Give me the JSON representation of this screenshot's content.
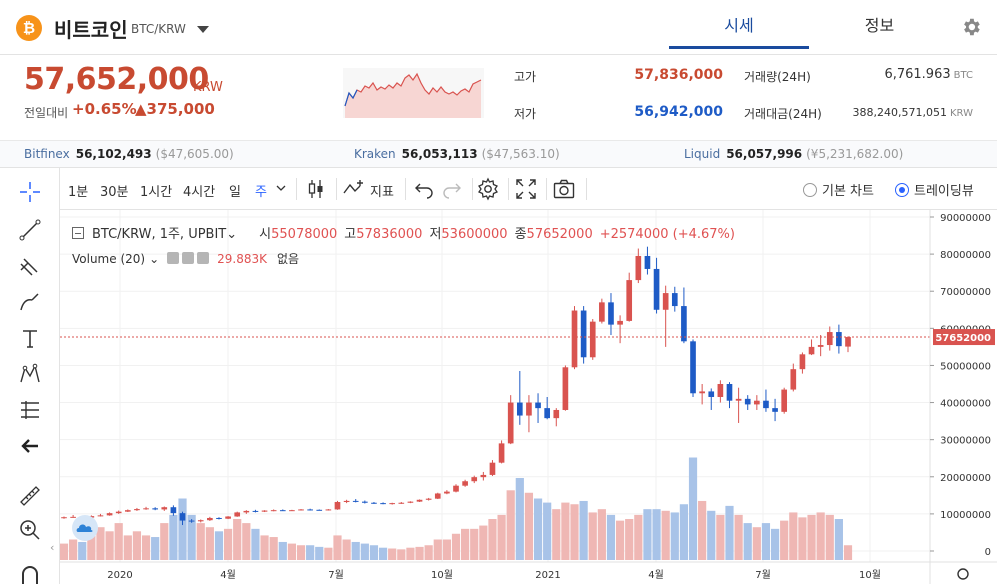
{
  "header": {
    "coin_symbol": "₿",
    "coin_name": "비트코인",
    "pair": "BTC/KRW",
    "tabs": [
      {
        "label": "시세",
        "active": true
      },
      {
        "label": "정보",
        "active": false
      }
    ]
  },
  "price": {
    "current": "57,652,000",
    "unit": "KRW",
    "change_label": "전일대비",
    "change_pct": "+0.65%",
    "change_amt": "▲375,000",
    "high_label": "고가",
    "high": "57,836,000",
    "low_label": "저가",
    "low": "56,942,000",
    "volume_label": "거래량(24H)",
    "volume": "6,761.963",
    "volume_unit": "BTC",
    "value_label": "거래대금(24H)",
    "value": "388,240,571,051",
    "value_unit": "KRW"
  },
  "exchanges": [
    {
      "name": "Bitfinex",
      "price": "56,102,493",
      "sub": "($47,605.00)"
    },
    {
      "name": "Kraken",
      "price": "56,053,113",
      "sub": "($47,563.10)"
    },
    {
      "name": "Liquid",
      "price": "56,057,996",
      "sub": "(¥5,231,682.00)"
    }
  ],
  "toolbar": {
    "intervals": [
      "1분",
      "30분",
      "1시간",
      "4시간",
      "일",
      "주"
    ],
    "active_interval": "주",
    "indicators_label": "지표",
    "radio_basic": "기본 차트",
    "radio_tv": "트레이딩뷰"
  },
  "legend": {
    "symbol": "BTC/KRW, 1주, UPBIT",
    "open_label": "시",
    "open": "55078000",
    "high_label": "고",
    "high": "57836000",
    "low_label": "저",
    "low": "53600000",
    "close_label": "종",
    "close": "57652000",
    "change": "+2574000 (+4.67%)",
    "volume_label": "Volume (20)",
    "volume_value": "29.883K",
    "volume_ma": "없음"
  },
  "colors": {
    "up": "#d9534f",
    "down": "#1e5bc6",
    "vol_up": "#efb7b4",
    "vol_down": "#a8c3e8",
    "accent": "#1a4b9e"
  },
  "chart_data": {
    "type": "candlestick",
    "ylim": [
      0,
      90000000
    ],
    "y_ticks": [
      "90000000",
      "80000000",
      "70000000",
      "60000000",
      "50000000",
      "40000000",
      "30000000",
      "20000000",
      "10000000",
      "0"
    ],
    "x_labels": [
      "2020",
      "4월",
      "7월",
      "10월",
      "2021",
      "4월",
      "7월",
      "10월"
    ],
    "last_price_label": "57652000",
    "candles": [
      [
        9000000,
        9300000,
        8700000,
        9100000,
        0.2
      ],
      [
        9100000,
        9700000,
        9000000,
        9200000,
        0.25
      ],
      [
        9200000,
        9400000,
        8900000,
        9000000,
        0.22
      ],
      [
        9000000,
        9600000,
        8800000,
        9400000,
        0.3
      ],
      [
        9400000,
        10000000,
        9300000,
        9600000,
        0.4
      ],
      [
        9600000,
        10400000,
        9500000,
        10200000,
        0.35
      ],
      [
        10200000,
        10900000,
        10000000,
        10600000,
        0.45
      ],
      [
        10600000,
        11200000,
        10500000,
        11000000,
        0.3
      ],
      [
        11000000,
        11600000,
        10800000,
        11300000,
        0.35
      ],
      [
        11300000,
        11900000,
        11100000,
        11500000,
        0.3
      ],
      [
        11500000,
        11800000,
        11000000,
        11200000,
        0.28
      ],
      [
        11200000,
        12000000,
        10800000,
        11800000,
        0.45
      ],
      [
        11800000,
        12300000,
        9500000,
        10200000,
        0.55
      ],
      [
        10200000,
        10600000,
        7000000,
        8200000,
        0.75
      ],
      [
        8200000,
        8600000,
        7600000,
        8000000,
        0.55
      ],
      [
        8000000,
        8500000,
        7700000,
        8300000,
        0.45
      ],
      [
        8300000,
        9200000,
        8100000,
        8900000,
        0.4
      ],
      [
        8900000,
        9100000,
        8500000,
        8700000,
        0.35
      ],
      [
        8700000,
        9400000,
        8600000,
        9300000,
        0.38
      ],
      [
        9300000,
        10600000,
        9200000,
        10400000,
        0.5
      ],
      [
        10400000,
        11000000,
        10000000,
        10800000,
        0.45
      ],
      [
        10800000,
        11100000,
        10400000,
        10600000,
        0.38
      ],
      [
        10600000,
        11000000,
        10500000,
        10900000,
        0.3
      ],
      [
        10900000,
        11200000,
        10700000,
        11000000,
        0.28
      ],
      [
        11000000,
        11200000,
        10800000,
        10900000,
        0.22
      ],
      [
        10900000,
        11100000,
        10800000,
        11000000,
        0.2
      ],
      [
        11000000,
        11300000,
        10900000,
        11200000,
        0.18
      ],
      [
        11200000,
        11400000,
        10900000,
        11100000,
        0.18
      ],
      [
        11100000,
        11200000,
        10900000,
        11000000,
        0.16
      ],
      [
        11000000,
        11300000,
        10900000,
        11200000,
        0.15
      ],
      [
        11200000,
        13500000,
        11100000,
        13200000,
        0.3
      ],
      [
        13200000,
        13800000,
        12900000,
        13500000,
        0.25
      ],
      [
        13500000,
        14000000,
        13100000,
        13300000,
        0.22
      ],
      [
        13300000,
        13600000,
        12800000,
        13000000,
        0.2
      ],
      [
        13000000,
        13200000,
        12700000,
        12900000,
        0.18
      ],
      [
        12900000,
        13100000,
        12600000,
        12800000,
        0.15
      ],
      [
        12800000,
        13000000,
        12500000,
        12900000,
        0.14
      ],
      [
        12900000,
        13200000,
        12700000,
        13000000,
        0.13
      ],
      [
        13000000,
        13400000,
        12900000,
        13300000,
        0.15
      ],
      [
        13300000,
        13900000,
        13200000,
        13800000,
        0.16
      ],
      [
        13800000,
        14300000,
        13600000,
        14100000,
        0.18
      ],
      [
        14100000,
        15700000,
        14000000,
        15500000,
        0.25
      ],
      [
        15500000,
        16400000,
        15300000,
        16000000,
        0.25
      ],
      [
        16000000,
        18000000,
        15800000,
        17600000,
        0.32
      ],
      [
        17600000,
        19200000,
        17300000,
        18800000,
        0.38
      ],
      [
        18800000,
        20300000,
        18300000,
        19900000,
        0.38
      ],
      [
        19900000,
        21300000,
        19000000,
        20500000,
        0.42
      ],
      [
        20500000,
        24500000,
        20200000,
        23800000,
        0.5
      ],
      [
        23800000,
        29800000,
        23600000,
        29000000,
        0.55
      ],
      [
        29000000,
        42000000,
        28800000,
        40000000,
        0.85
      ],
      [
        40000000,
        48500000,
        34000000,
        36500000,
        1.0
      ],
      [
        36500000,
        42000000,
        32000000,
        40000000,
        0.82
      ],
      [
        40000000,
        42500000,
        34500000,
        38500000,
        0.75
      ],
      [
        38500000,
        41500000,
        35500000,
        35800000,
        0.7
      ],
      [
        35800000,
        38500000,
        33600000,
        38000000,
        0.62
      ],
      [
        38000000,
        50000000,
        37800000,
        49500000,
        0.7
      ],
      [
        49500000,
        66000000,
        49000000,
        64800000,
        0.68
      ],
      [
        64800000,
        66000000,
        50500000,
        52200000,
        0.72
      ],
      [
        52200000,
        62500000,
        51500000,
        61800000,
        0.58
      ],
      [
        61800000,
        68000000,
        61300000,
        67000000,
        0.62
      ],
      [
        67000000,
        69500000,
        58200000,
        61000000,
        0.55
      ],
      [
        61000000,
        63500000,
        56000000,
        62000000,
        0.48
      ],
      [
        62000000,
        75000000,
        61800000,
        73000000,
        0.5
      ],
      [
        73000000,
        81500000,
        72200000,
        79500000,
        0.55
      ],
      [
        79500000,
        82000000,
        74500000,
        76000000,
        0.62
      ],
      [
        76000000,
        79000000,
        64000000,
        65000000,
        0.62
      ],
      [
        65000000,
        71500000,
        55000000,
        69500000,
        0.6
      ],
      [
        69500000,
        71200000,
        64500000,
        66000000,
        0.58
      ],
      [
        66000000,
        71000000,
        56000000,
        56500000,
        0.68
      ],
      [
        56500000,
        57000000,
        41500000,
        42500000,
        1.25
      ],
      [
        42500000,
        45000000,
        39500000,
        43000000,
        0.72
      ],
      [
        43000000,
        43800000,
        38000000,
        41500000,
        0.6
      ],
      [
        41500000,
        46000000,
        40000000,
        45000000,
        0.55
      ],
      [
        45000000,
        45500000,
        38500000,
        40500000,
        0.66
      ],
      [
        40500000,
        44000000,
        34500000,
        41000000,
        0.55
      ],
      [
        41000000,
        42000000,
        38000000,
        39500000,
        0.45
      ],
      [
        39500000,
        42000000,
        38000000,
        40500000,
        0.4
      ],
      [
        40500000,
        43500000,
        37500000,
        38500000,
        0.45
      ],
      [
        38500000,
        41000000,
        35000000,
        37500000,
        0.38
      ],
      [
        37500000,
        44000000,
        37000000,
        43500000,
        0.48
      ],
      [
        43500000,
        50500000,
        43000000,
        49000000,
        0.58
      ],
      [
        49000000,
        53500000,
        47800000,
        53000000,
        0.52
      ],
      [
        53000000,
        57000000,
        52800000,
        55000000,
        0.55
      ],
      [
        55000000,
        58200000,
        52500000,
        55500000,
        0.58
      ],
      [
        55500000,
        60500000,
        54000000,
        59000000,
        0.55
      ],
      [
        59000000,
        61000000,
        53200000,
        55200000,
        0.5
      ],
      [
        55078000,
        57836000,
        53600000,
        57652000,
        0.18
      ]
    ]
  }
}
